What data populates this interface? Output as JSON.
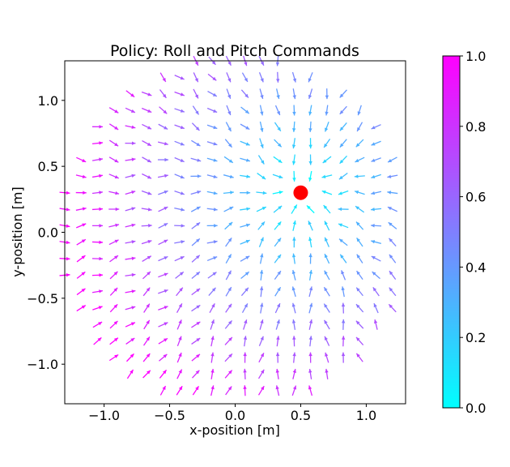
{
  "chart_data": {
    "type": "quiver",
    "title": "Policy: Roll and Pitch Commands",
    "xlabel": "x-position [m]",
    "ylabel": "y-position [m]",
    "xlim": [
      -1.3,
      1.3
    ],
    "ylim": [
      -1.3,
      1.3
    ],
    "x_ticks": [
      -1.0,
      -0.5,
      0.0,
      0.5,
      1.0
    ],
    "x_tick_labels": [
      "−1.0",
      "−0.5",
      "0.0",
      "0.5",
      "1.0"
    ],
    "y_ticks": [
      1.0,
      0.5,
      0.0,
      -0.5,
      -1.0
    ],
    "y_tick_labels": [
      "1.0",
      "0.5",
      "0.0",
      "−0.5",
      "−1.0"
    ],
    "grid": false,
    "target": {
      "x": 0.5,
      "y": 0.3,
      "color": "#ff0000"
    },
    "field": {
      "grid_spacing": 0.125,
      "region_radius": 1.35,
      "arrows_point_toward": "target",
      "magnitude_scale": "distance_to_target / 1.8"
    },
    "colorbar": {
      "cmap": "cool",
      "min": 0.0,
      "max": 1.0,
      "ticks": [
        1.0,
        0.8,
        0.6,
        0.4,
        0.2,
        0.0
      ],
      "tick_labels": [
        "1.0",
        "0.8",
        "0.6",
        "0.4",
        "0.2",
        "0.0"
      ],
      "color_low": "#00ffff",
      "color_high": "#ff00ff"
    }
  }
}
